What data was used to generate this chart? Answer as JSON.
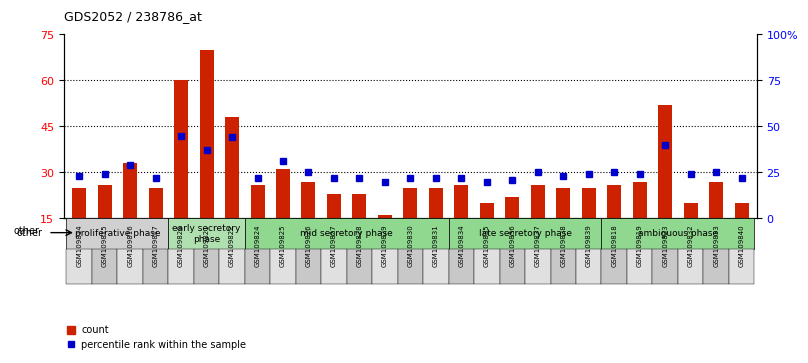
{
  "title": "GDS2052 / 238786_at",
  "samples": [
    "GSM109814",
    "GSM109815",
    "GSM109816",
    "GSM109817",
    "GSM109820",
    "GSM109821",
    "GSM109822",
    "GSM109824",
    "GSM109825",
    "GSM109826",
    "GSM109827",
    "GSM109828",
    "GSM109829",
    "GSM109830",
    "GSM109831",
    "GSM109834",
    "GSM109835",
    "GSM109836",
    "GSM109837",
    "GSM109838",
    "GSM109839",
    "GSM109818",
    "GSM109819",
    "GSM109823",
    "GSM109832",
    "GSM109833",
    "GSM109840"
  ],
  "counts": [
    25,
    26,
    33,
    25,
    60,
    70,
    48,
    26,
    31,
    27,
    23,
    23,
    16,
    25,
    25,
    26,
    20,
    22,
    26,
    25,
    25,
    26,
    27,
    52,
    20,
    27,
    20
  ],
  "percentiles": [
    23,
    24,
    29,
    22,
    45,
    37,
    44,
    22,
    31,
    25,
    22,
    22,
    20,
    22,
    22,
    22,
    20,
    21,
    25,
    23,
    24,
    25,
    24,
    40,
    24,
    25,
    22
  ],
  "phases": [
    {
      "name": "proliferative phase",
      "count": 4,
      "color": "#d0d0d0"
    },
    {
      "name": "early secretory\nphase",
      "count": 3,
      "color": "#b0e0b0"
    },
    {
      "name": "mid secretory phase",
      "count": 8,
      "color": "#90d890"
    },
    {
      "name": "late secretory phase",
      "count": 6,
      "color": "#90d890"
    },
    {
      "name": "ambiguous phase",
      "count": 6,
      "color": "#90d890"
    }
  ],
  "ylim_left": [
    15,
    75
  ],
  "ylim_right": [
    0,
    100
  ],
  "yticks_left": [
    15,
    30,
    45,
    60,
    75
  ],
  "yticks_right": [
    0,
    25,
    50,
    75,
    100
  ],
  "ytick_labels_right": [
    "0",
    "25",
    "50",
    "75",
    "100%"
  ],
  "bar_color": "#cc2200",
  "marker_color": "#0000cc",
  "background_color": "#ffffff",
  "legend_count_label": "count",
  "legend_pct_label": "percentile rank within the sample",
  "other_label": "other"
}
